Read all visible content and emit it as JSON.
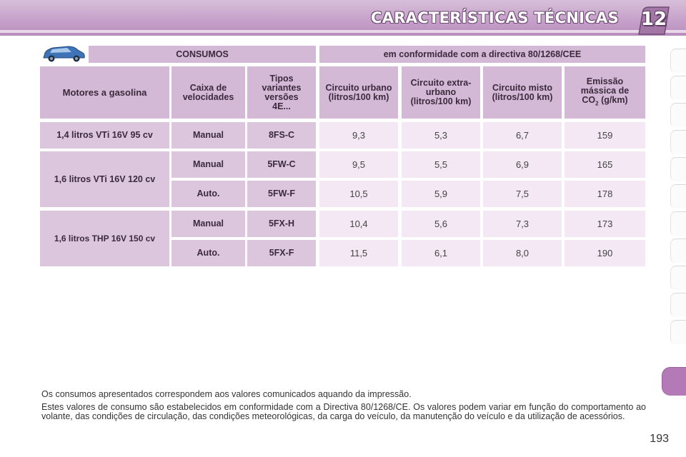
{
  "header": {
    "title": "CARACTERÍSTICAS TÉCNICAS",
    "chapter": "12"
  },
  "table": {
    "top_headers": {
      "consumos": "CONSUMOS",
      "directiva": "em conformidade com a directiva 80/1268/CEE"
    },
    "columns": {
      "motores": "Motores a gasolina",
      "caixa": "Caixa de velocidades",
      "tipos": "Tipos variantes versões 4E...",
      "urbano": "Circuito urbano (litros/100 km)",
      "extra": "Circuito extra-urbano (litros/100 km)",
      "misto": "Circuito misto (litros/100 km)",
      "emissao_line1": "Emissão mássica de",
      "emissao_co": "CO",
      "emissao_sub": "2",
      "emissao_unit": "(g/km)"
    },
    "engines": [
      "1,4 litros VTi 16V 95 cv",
      "1,6 litros VTi 16V 120 cv",
      "1,6 litros THP 16V 150 cv"
    ],
    "rows": [
      {
        "caixa": "Manual",
        "tipo": "8FS-C",
        "urbano": "9,3",
        "extra": "5,3",
        "misto": "6,7",
        "co2": "159"
      },
      {
        "caixa": "Manual",
        "tipo": "5FW-C",
        "urbano": "9,5",
        "extra": "5,5",
        "misto": "6,9",
        "co2": "165"
      },
      {
        "caixa": "Auto.",
        "tipo": "5FW-F",
        "urbano": "10,5",
        "extra": "5,9",
        "misto": "7,5",
        "co2": "178"
      },
      {
        "caixa": "Manual",
        "tipo": "5FX-H",
        "urbano": "10,4",
        "extra": "5,6",
        "misto": "7,3",
        "co2": "173"
      },
      {
        "caixa": "Auto.",
        "tipo": "5FX-F",
        "urbano": "11,5",
        "extra": "6,1",
        "misto": "8,0",
        "co2": "190"
      }
    ]
  },
  "notes": {
    "p1": "Os consumos apresentados correspondem aos valores comunicados aquando da impressão.",
    "p2": "Estes valores de consumo são estabelecidos em conformidade com a Directiva 80/1268/CE. Os valores podem variar em função do comportamento ao volante, das condições de circulação, das condições meteorológicas, da carga do veículo, da manutenção do veículo e da utilização de acessórios."
  },
  "page_number": "193",
  "colors": {
    "header": "#c9a7cd",
    "cell_header": "#d4b9d7",
    "cell_value": "#f3e8f4",
    "tab_active": "#b37ab7"
  },
  "icons": {
    "car": "car-icon"
  }
}
